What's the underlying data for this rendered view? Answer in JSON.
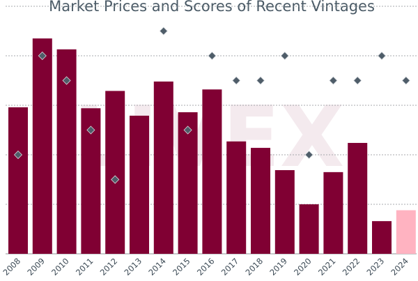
{
  "chart_data": {
    "type": "bar",
    "title": "Market Prices and Scores of Recent Vintages",
    "watermark": "LIVEX",
    "categories": [
      "2008",
      "2009",
      "2010",
      "2011",
      "2012",
      "2013",
      "2014",
      "2015",
      "2016",
      "2017",
      "2018",
      "2019",
      "2020",
      "2021",
      "2022",
      "2023",
      "2024"
    ],
    "grid": true,
    "legend": "none",
    "series": [
      {
        "kind": "bar",
        "values": [
          2.96,
          4.35,
          4.13,
          2.94,
          3.29,
          2.79,
          3.48,
          2.86,
          3.32,
          2.27,
          2.14,
          1.69,
          1.0,
          1.65,
          2.24,
          0.66,
          0.88
        ],
        "colors": [
          "#800033",
          "#800033",
          "#800033",
          "#800033",
          "#800033",
          "#800033",
          "#800033",
          "#800033",
          "#800033",
          "#800033",
          "#800033",
          "#800033",
          "#800033",
          "#800033",
          "#800033",
          "#800033",
          "#ffb3c1"
        ]
      },
      {
        "kind": "scatter",
        "color": "#4f5d69",
        "values": [
          94,
          98,
          97,
          95,
          93,
          null,
          99,
          95,
          98,
          97,
          97,
          98,
          94,
          97,
          97,
          98,
          97
        ]
      }
    ],
    "bar_axis_range": [
      0,
      5
    ],
    "score_axis_range": [
      90,
      100
    ]
  }
}
